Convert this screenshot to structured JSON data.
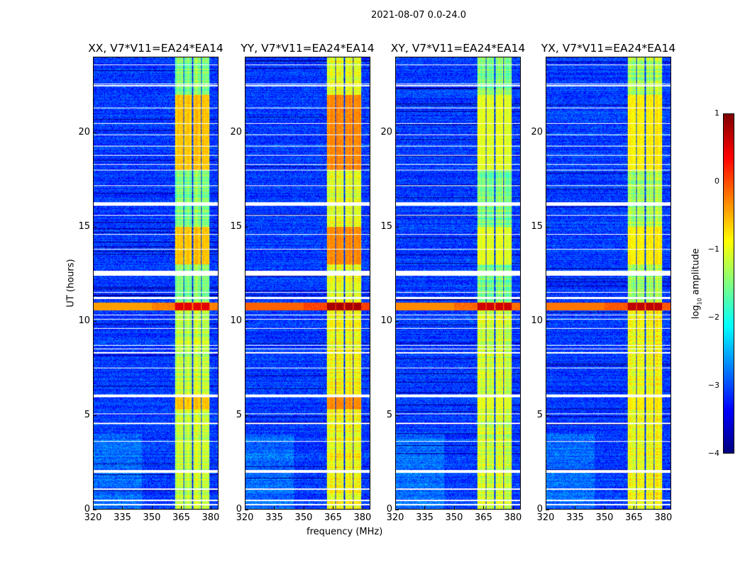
{
  "chart_data": {
    "type": "heatmap",
    "title": "2021-08-07 0.0-24.0",
    "xlabel": "frequency (MHz)",
    "ylabel": "UT (hours)",
    "xlim": [
      320,
      384
    ],
    "ylim": [
      0,
      24
    ],
    "xticks": [
      "320",
      "335",
      "350",
      "365",
      "380"
    ],
    "yticks": [
      "0",
      "5",
      "10",
      "15",
      "20"
    ],
    "panels": [
      {
        "title": "XX, V7*V11=EA24*EA14",
        "band_level_early": -1.2,
        "band_level_late": -1.5,
        "band_hot": -0.6,
        "event_level": 0.5
      },
      {
        "title": "YY, V7*V11=EA24*EA14",
        "band_level_early": -0.9,
        "band_level_late": -1.0,
        "band_hot": -0.3,
        "event_level": 0.8
      },
      {
        "title": "XY, V7*V11=EA24*EA14",
        "band_level_early": -1.1,
        "band_level_late": -1.5,
        "band_hot": -1.0,
        "event_level": 0.6
      },
      {
        "title": "YX, V7*V11=EA24*EA14",
        "band_level_early": -0.9,
        "band_level_late": -1.3,
        "band_hot": -0.8,
        "event_level": 0.7
      }
    ],
    "background_level": -3.1,
    "subbands_mhz": [
      [
        362,
        366.3
      ],
      [
        366.8,
        370.8
      ],
      [
        371.3,
        375.3
      ],
      [
        375.8,
        379.8
      ]
    ],
    "rfi_event_hours": [
      10.55,
      10.95
    ],
    "flagged_hours": [
      [
        0.2,
        0.28
      ],
      [
        0.42,
        0.48
      ],
      [
        1.02,
        1.08
      ],
      [
        1.9,
        2.05
      ],
      [
        3.58,
        3.62
      ],
      [
        4.52,
        4.57
      ],
      [
        5.02,
        5.07
      ],
      [
        5.92,
        6.07
      ],
      [
        7.48,
        7.53
      ],
      [
        8.28,
        8.32
      ],
      [
        8.48,
        8.52
      ],
      [
        8.68,
        8.72
      ],
      [
        9.58,
        9.62
      ],
      [
        10.08,
        10.12
      ],
      [
        10.28,
        10.32
      ],
      [
        11.15,
        11.25
      ],
      [
        11.48,
        11.52
      ],
      [
        12.4,
        12.65
      ],
      [
        13.78,
        13.82
      ],
      [
        14.58,
        14.62
      ],
      [
        15.58,
        15.62
      ],
      [
        16.1,
        16.3
      ],
      [
        17.18,
        17.22
      ],
      [
        17.98,
        18.02
      ],
      [
        18.28,
        18.32
      ],
      [
        18.78,
        18.82
      ],
      [
        19.28,
        19.32
      ],
      [
        19.88,
        19.92
      ],
      [
        20.48,
        20.52
      ],
      [
        21.28,
        21.32
      ],
      [
        22.45,
        22.52
      ],
      [
        22.58,
        22.62
      ],
      [
        23.58,
        23.62
      ]
    ],
    "colorbar": {
      "label_prefix": "log",
      "label_sub": "10",
      "label_suffix": " amplitude",
      "range": [
        -4,
        1
      ],
      "ticks": [
        "1",
        "0",
        "−1",
        "−2",
        "−3",
        "−4"
      ],
      "colormap": "jet"
    }
  }
}
